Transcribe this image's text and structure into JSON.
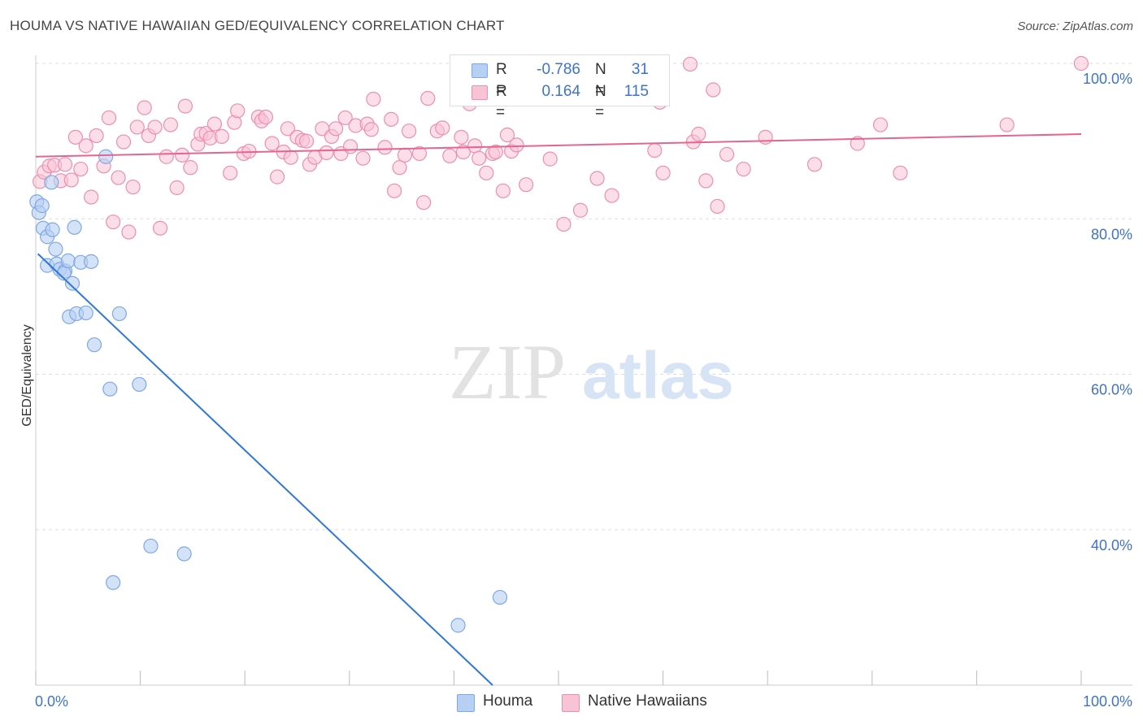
{
  "title": "HOUMA VS NATIVE HAWAIIAN GED/EQUIVALENCY CORRELATION CHART",
  "source": "Source: ZipAtlas.com",
  "colors": {
    "houma": "#7ea8e6",
    "houma_fill": "#b7cff2",
    "houma_line": "#2f78d6",
    "native": "#ec8fb0",
    "native_fill": "#f7c3d5",
    "native_line": "#e4658f",
    "accent_text": "#3f73c7",
    "grid": "#dddddd"
  },
  "legend": {
    "r_label": "R =",
    "n_label": "N =",
    "rows": [
      {
        "name": "Houma",
        "r": "-0.786",
        "n": "31"
      },
      {
        "name": "Native Hawaiians",
        "r": "0.164",
        "n": "115"
      }
    ]
  },
  "watermark": {
    "part1": "ZIP",
    "part2": "atlas"
  },
  "chart_data": {
    "type": "scatter",
    "title": "HOUMA VS NATIVE HAWAIIAN GED/EQUIVALENCY CORRELATION CHART",
    "xlabel": "",
    "ylabel": "GED/Equivalency",
    "xlim": [
      0,
      100
    ],
    "ylim": [
      20,
      100
    ],
    "x_tick_labels": [
      "0.0%",
      "100.0%"
    ],
    "y_ticks": [
      {
        "value": 100,
        "label": "100.0%"
      },
      {
        "value": 80,
        "label": "80.0%"
      },
      {
        "value": 60,
        "label": "60.0%"
      },
      {
        "value": 40,
        "label": "40.0%"
      }
    ],
    "grid": true,
    "legend_position": "bottom",
    "series": [
      {
        "name": "Houma",
        "r": -0.786,
        "n": 31,
        "trend": {
          "x": [
            0.2,
            43.7
          ],
          "y": [
            75.5,
            20.0
          ]
        },
        "points": [
          {
            "x": 0.1,
            "y": 82.2
          },
          {
            "x": 0.3,
            "y": 80.8
          },
          {
            "x": 0.6,
            "y": 81.7
          },
          {
            "x": 0.7,
            "y": 78.8
          },
          {
            "x": 1.1,
            "y": 77.7
          },
          {
            "x": 1.5,
            "y": 84.7
          },
          {
            "x": 1.6,
            "y": 78.6
          },
          {
            "x": 1.9,
            "y": 76.1
          },
          {
            "x": 1.1,
            "y": 74.0
          },
          {
            "x": 2.0,
            "y": 74.2
          },
          {
            "x": 2.3,
            "y": 73.5
          },
          {
            "x": 2.8,
            "y": 73.3
          },
          {
            "x": 2.7,
            "y": 73.0
          },
          {
            "x": 3.1,
            "y": 74.6
          },
          {
            "x": 3.5,
            "y": 71.7
          },
          {
            "x": 3.7,
            "y": 78.9
          },
          {
            "x": 4.3,
            "y": 74.4
          },
          {
            "x": 5.3,
            "y": 74.5
          },
          {
            "x": 3.2,
            "y": 67.4
          },
          {
            "x": 3.9,
            "y": 67.8
          },
          {
            "x": 4.8,
            "y": 67.9
          },
          {
            "x": 5.6,
            "y": 63.8
          },
          {
            "x": 8.0,
            "y": 67.8
          },
          {
            "x": 7.1,
            "y": 58.1
          },
          {
            "x": 9.9,
            "y": 58.7
          },
          {
            "x": 6.7,
            "y": 88.0
          },
          {
            "x": 11.0,
            "y": 37.9
          },
          {
            "x": 14.2,
            "y": 36.9
          },
          {
            "x": 7.4,
            "y": 33.2
          },
          {
            "x": 44.4,
            "y": 31.3
          },
          {
            "x": 40.4,
            "y": 27.7
          }
        ]
      },
      {
        "name": "Native Hawaiians",
        "r": 0.164,
        "n": 115,
        "trend": {
          "x": [
            0.0,
            100.0
          ],
          "y": [
            88.0,
            90.9
          ]
        },
        "points": [
          {
            "x": 0.4,
            "y": 84.8
          },
          {
            "x": 0.8,
            "y": 86.0
          },
          {
            "x": 1.3,
            "y": 86.8
          },
          {
            "x": 1.8,
            "y": 86.9
          },
          {
            "x": 2.4,
            "y": 84.9
          },
          {
            "x": 2.8,
            "y": 87.0
          },
          {
            "x": 3.4,
            "y": 85.0
          },
          {
            "x": 3.8,
            "y": 90.5
          },
          {
            "x": 4.3,
            "y": 86.4
          },
          {
            "x": 4.8,
            "y": 89.4
          },
          {
            "x": 5.3,
            "y": 82.8
          },
          {
            "x": 5.8,
            "y": 90.7
          },
          {
            "x": 6.5,
            "y": 86.8
          },
          {
            "x": 7.0,
            "y": 93.0
          },
          {
            "x": 7.4,
            "y": 79.6
          },
          {
            "x": 7.9,
            "y": 85.3
          },
          {
            "x": 8.4,
            "y": 89.9
          },
          {
            "x": 8.9,
            "y": 78.3
          },
          {
            "x": 9.3,
            "y": 84.1
          },
          {
            "x": 9.7,
            "y": 91.8
          },
          {
            "x": 10.4,
            "y": 94.3
          },
          {
            "x": 10.8,
            "y": 90.7
          },
          {
            "x": 11.4,
            "y": 91.8
          },
          {
            "x": 11.9,
            "y": 78.8
          },
          {
            "x": 12.5,
            "y": 88.0
          },
          {
            "x": 12.9,
            "y": 92.1
          },
          {
            "x": 13.5,
            "y": 84.0
          },
          {
            "x": 14.0,
            "y": 88.2
          },
          {
            "x": 14.3,
            "y": 94.5
          },
          {
            "x": 14.8,
            "y": 86.6
          },
          {
            "x": 15.5,
            "y": 89.6
          },
          {
            "x": 15.8,
            "y": 90.9
          },
          {
            "x": 16.3,
            "y": 91.0
          },
          {
            "x": 16.7,
            "y": 90.4
          },
          {
            "x": 17.1,
            "y": 92.2
          },
          {
            "x": 17.8,
            "y": 90.6
          },
          {
            "x": 18.6,
            "y": 85.9
          },
          {
            "x": 19.0,
            "y": 92.4
          },
          {
            "x": 19.3,
            "y": 93.9
          },
          {
            "x": 19.9,
            "y": 88.4
          },
          {
            "x": 20.4,
            "y": 88.7
          },
          {
            "x": 21.3,
            "y": 93.1
          },
          {
            "x": 21.6,
            "y": 92.6
          },
          {
            "x": 22.0,
            "y": 93.1
          },
          {
            "x": 22.6,
            "y": 89.7
          },
          {
            "x": 23.1,
            "y": 85.4
          },
          {
            "x": 23.7,
            "y": 88.6
          },
          {
            "x": 24.1,
            "y": 91.6
          },
          {
            "x": 24.4,
            "y": 87.9
          },
          {
            "x": 25.0,
            "y": 90.5
          },
          {
            "x": 25.5,
            "y": 90.1
          },
          {
            "x": 25.9,
            "y": 90.0
          },
          {
            "x": 26.2,
            "y": 87.0
          },
          {
            "x": 26.7,
            "y": 87.9
          },
          {
            "x": 27.4,
            "y": 91.6
          },
          {
            "x": 27.8,
            "y": 88.5
          },
          {
            "x": 28.3,
            "y": 90.6
          },
          {
            "x": 28.7,
            "y": 91.6
          },
          {
            "x": 29.2,
            "y": 88.4
          },
          {
            "x": 29.6,
            "y": 93.0
          },
          {
            "x": 30.1,
            "y": 89.3
          },
          {
            "x": 30.6,
            "y": 92.0
          },
          {
            "x": 31.3,
            "y": 87.8
          },
          {
            "x": 31.7,
            "y": 92.2
          },
          {
            "x": 32.1,
            "y": 91.5
          },
          {
            "x": 32.3,
            "y": 95.4
          },
          {
            "x": 33.4,
            "y": 89.2
          },
          {
            "x": 34.0,
            "y": 92.8
          },
          {
            "x": 34.3,
            "y": 83.6
          },
          {
            "x": 34.8,
            "y": 86.6
          },
          {
            "x": 35.3,
            "y": 88.2
          },
          {
            "x": 35.7,
            "y": 91.3
          },
          {
            "x": 36.7,
            "y": 88.4
          },
          {
            "x": 37.1,
            "y": 82.1
          },
          {
            "x": 37.5,
            "y": 95.5
          },
          {
            "x": 38.4,
            "y": 91.3
          },
          {
            "x": 38.9,
            "y": 91.7
          },
          {
            "x": 39.6,
            "y": 88.1
          },
          {
            "x": 40.7,
            "y": 90.5
          },
          {
            "x": 40.9,
            "y": 88.6
          },
          {
            "x": 41.5,
            "y": 94.8
          },
          {
            "x": 42.0,
            "y": 89.4
          },
          {
            "x": 42.4,
            "y": 87.8
          },
          {
            "x": 43.1,
            "y": 85.9
          },
          {
            "x": 43.7,
            "y": 88.4
          },
          {
            "x": 44.0,
            "y": 88.6
          },
          {
            "x": 44.7,
            "y": 83.6
          },
          {
            "x": 45.1,
            "y": 90.8
          },
          {
            "x": 45.5,
            "y": 88.7
          },
          {
            "x": 46.0,
            "y": 89.5
          },
          {
            "x": 46.9,
            "y": 84.4
          },
          {
            "x": 49.2,
            "y": 87.7
          },
          {
            "x": 50.5,
            "y": 79.3
          },
          {
            "x": 52.1,
            "y": 81.1
          },
          {
            "x": 53.7,
            "y": 85.2
          },
          {
            "x": 55.1,
            "y": 83.0
          },
          {
            "x": 59.2,
            "y": 88.8
          },
          {
            "x": 59.7,
            "y": 95.0
          },
          {
            "x": 60.0,
            "y": 85.9
          },
          {
            "x": 62.6,
            "y": 99.9
          },
          {
            "x": 62.9,
            "y": 89.9
          },
          {
            "x": 63.4,
            "y": 90.9
          },
          {
            "x": 64.1,
            "y": 84.9
          },
          {
            "x": 64.8,
            "y": 96.6
          },
          {
            "x": 65.2,
            "y": 81.6
          },
          {
            "x": 66.1,
            "y": 88.3
          },
          {
            "x": 67.7,
            "y": 86.4
          },
          {
            "x": 69.8,
            "y": 90.5
          },
          {
            "x": 74.5,
            "y": 87.0
          },
          {
            "x": 78.6,
            "y": 89.7
          },
          {
            "x": 80.8,
            "y": 92.1
          },
          {
            "x": 82.7,
            "y": 85.9
          },
          {
            "x": 92.9,
            "y": 92.1
          },
          {
            "x": 100.0,
            "y": 100.0
          }
        ]
      }
    ]
  }
}
